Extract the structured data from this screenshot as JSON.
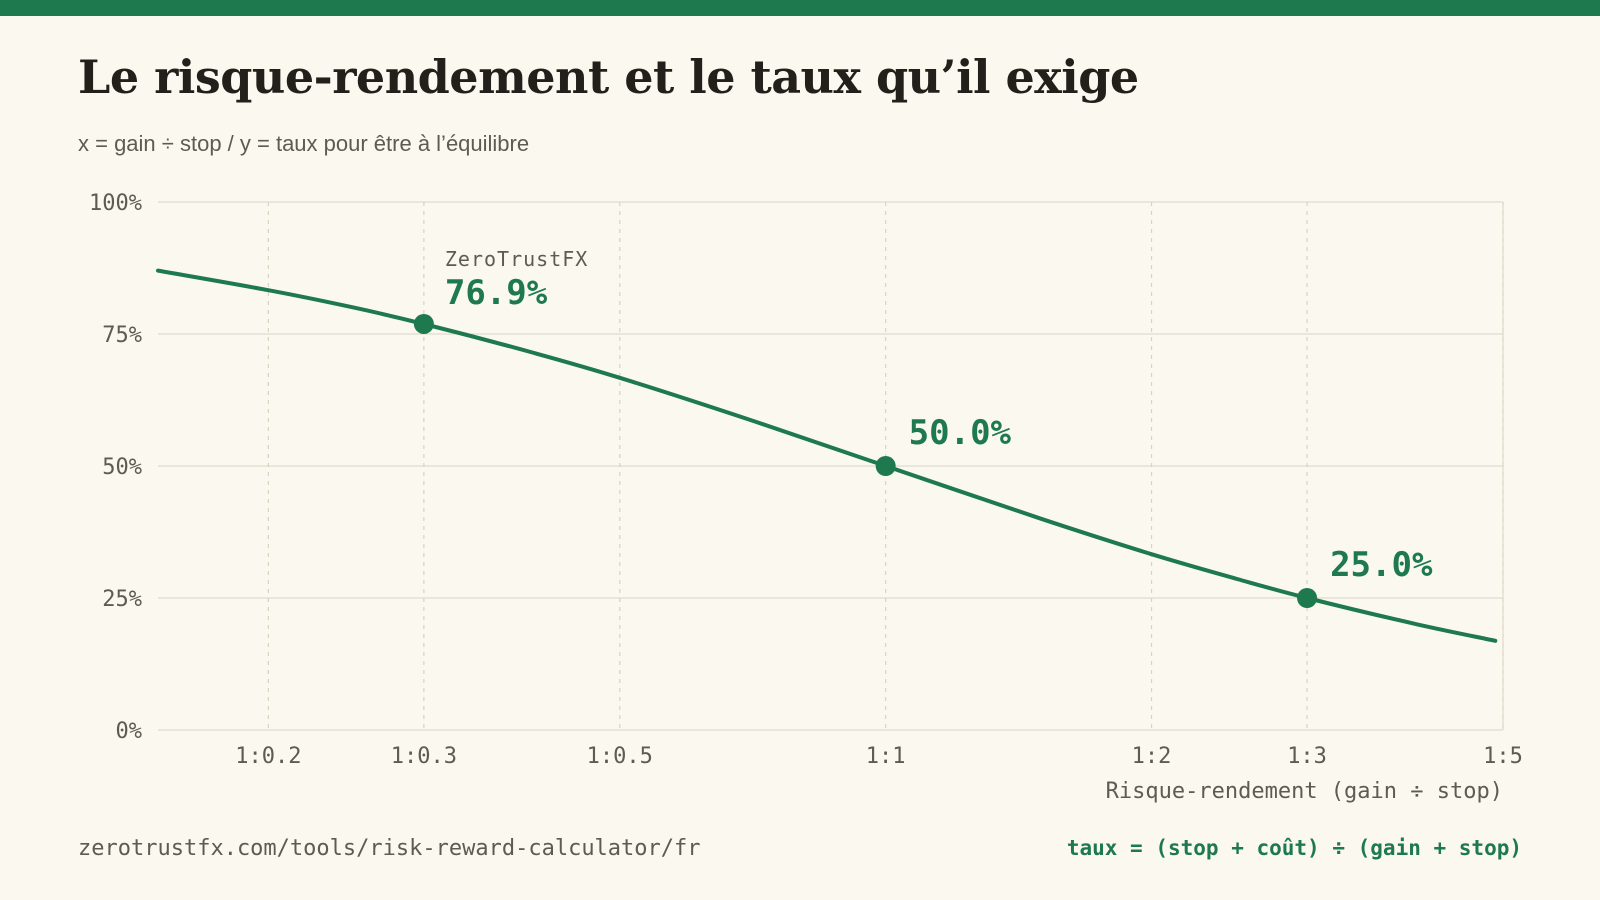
{
  "title": "Le risque-rendement et le taux qu’il exige",
  "subtitle": "x = gain ÷ stop / y = taux pour être à l’équilibre",
  "footer": {
    "url": "zerotrustfx.com/tools/risk-reward-calculator/fr",
    "formula": "taux = (stop + coût) ÷ (gain + stop)"
  },
  "colors": {
    "accent": "#1e7a4e",
    "background": "#fbf8f0",
    "grid": "#d9d3c2",
    "text": "#231f1b",
    "muted": "#5f5a52"
  },
  "chart_data": {
    "type": "line",
    "title": "Le risque-rendement et le taux qu’il exige",
    "subtitle": "x = gain ÷ stop / y = taux pour être à l’équilibre",
    "xlabel": "Risque-rendement (gain ÷ stop)",
    "ylabel": "",
    "x_scale": "log",
    "xlim": [
      0.15,
      5
    ],
    "ylim": [
      0,
      100
    ],
    "x_ticks": [
      {
        "value": 0.2,
        "label": "1:0.2"
      },
      {
        "value": 0.3,
        "label": "1:0.3"
      },
      {
        "value": 0.5,
        "label": "1:0.5"
      },
      {
        "value": 1,
        "label": "1:1"
      },
      {
        "value": 2,
        "label": "1:2"
      },
      {
        "value": 3,
        "label": "1:3"
      },
      {
        "value": 5,
        "label": "1:5"
      }
    ],
    "y_ticks": [
      {
        "value": 0,
        "label": "0%"
      },
      {
        "value": 25,
        "label": "25%"
      },
      {
        "value": 50,
        "label": "50%"
      },
      {
        "value": 75,
        "label": "75%"
      },
      {
        "value": 100,
        "label": "100%"
      }
    ],
    "grid": true,
    "series": [
      {
        "name": "",
        "x": [
          0.15,
          0.2,
          0.25,
          0.3,
          0.4,
          0.5,
          0.7,
          1,
          1.5,
          2,
          2.5,
          3,
          4,
          4.9
        ],
        "y": [
          87.0,
          83.3,
          80.0,
          76.9,
          71.4,
          66.7,
          58.8,
          50.0,
          40.0,
          33.3,
          28.6,
          25.0,
          20.0,
          16.9
        ]
      }
    ],
    "highlights": [
      {
        "x": 0.3,
        "y": 76.9,
        "value_label": "76.9%",
        "caption": "ZeroTrustFX"
      },
      {
        "x": 1,
        "y": 50.0,
        "value_label": "50.0%",
        "caption": ""
      },
      {
        "x": 3,
        "y": 25.0,
        "value_label": "25.0%",
        "caption": ""
      }
    ]
  }
}
